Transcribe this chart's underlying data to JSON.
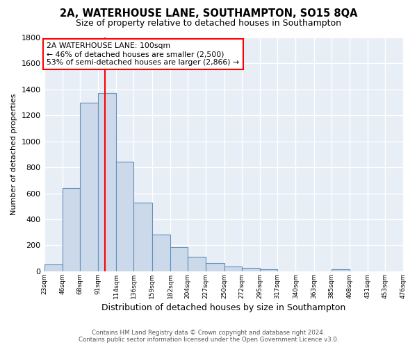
{
  "title": "2A, WATERHOUSE LANE, SOUTHAMPTON, SO15 8QA",
  "subtitle": "Size of property relative to detached houses in Southampton",
  "xlabel": "Distribution of detached houses by size in Southampton",
  "ylabel": "Number of detached properties",
  "footer_line1": "Contains HM Land Registry data © Crown copyright and database right 2024.",
  "footer_line2": "Contains public sector information licensed under the Open Government Licence v3.0.",
  "annotation_line1": "2A WATERHOUSE LANE: 100sqm",
  "annotation_line2": "← 46% of detached houses are smaller (2,500)",
  "annotation_line3": "53% of semi-detached houses are larger (2,866) →",
  "bar_edges": [
    23,
    46,
    68,
    91,
    114,
    136,
    159,
    182,
    204,
    227,
    250,
    272,
    295,
    317,
    340,
    363,
    385,
    408,
    431,
    453,
    476
  ],
  "bar_heights": [
    55,
    640,
    1300,
    1370,
    845,
    530,
    280,
    185,
    110,
    65,
    35,
    25,
    15,
    0,
    0,
    0,
    15,
    0,
    0,
    0
  ],
  "bar_color": "#ccd9ea",
  "bar_edge_color": "#6090bb",
  "red_line_x": 100,
  "ylim": [
    0,
    1800
  ],
  "tick_labels": [
    "23sqm",
    "46sqm",
    "68sqm",
    "91sqm",
    "114sqm",
    "136sqm",
    "159sqm",
    "182sqm",
    "204sqm",
    "227sqm",
    "250sqm",
    "272sqm",
    "295sqm",
    "317sqm",
    "340sqm",
    "363sqm",
    "385sqm",
    "408sqm",
    "431sqm",
    "453sqm",
    "476sqm"
  ],
  "bg_color": "#e8eef6",
  "grid_color": "#ffffff",
  "title_fontsize": 10.5,
  "subtitle_fontsize": 9
}
